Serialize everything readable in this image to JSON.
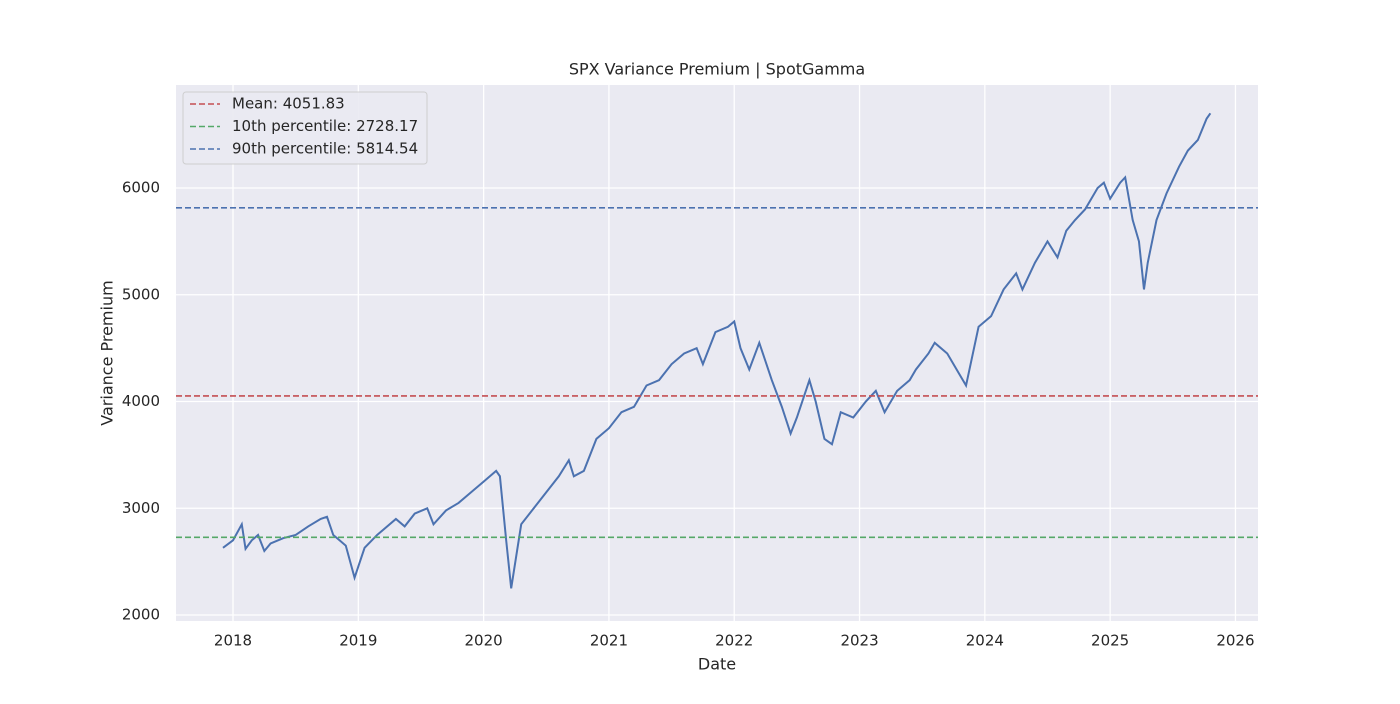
{
  "chart_data": {
    "type": "line",
    "title": "SPX Variance Premium | SpotGamma",
    "x_label": "Date",
    "y_label": "Variance Premium",
    "x": [
      2017.92,
      2018.0,
      2018.07,
      2018.1,
      2018.15,
      2018.2,
      2018.25,
      2018.3,
      2018.4,
      2018.5,
      2018.6,
      2018.7,
      2018.75,
      2018.8,
      2018.85,
      2018.9,
      2018.97,
      2019.05,
      2019.15,
      2019.3,
      2019.37,
      2019.45,
      2019.55,
      2019.6,
      2019.7,
      2019.8,
      2019.9,
      2020.0,
      2020.1,
      2020.13,
      2020.18,
      2020.22,
      2020.24,
      2020.3,
      2020.4,
      2020.5,
      2020.6,
      2020.68,
      2020.72,
      2020.8,
      2020.9,
      2021.0,
      2021.1,
      2021.2,
      2021.3,
      2021.4,
      2021.5,
      2021.6,
      2021.7,
      2021.75,
      2021.85,
      2021.95,
      2022.0,
      2022.05,
      2022.12,
      2022.2,
      2022.3,
      2022.38,
      2022.45,
      2022.5,
      2022.6,
      2022.65,
      2022.72,
      2022.78,
      2022.85,
      2022.95,
      2023.05,
      2023.13,
      2023.2,
      2023.3,
      2023.4,
      2023.45,
      2023.55,
      2023.6,
      2023.7,
      2023.8,
      2023.85,
      2023.95,
      2024.05,
      2024.15,
      2024.25,
      2024.3,
      2024.4,
      2024.5,
      2024.58,
      2024.65,
      2024.72,
      2024.8,
      2024.9,
      2024.95,
      2025.0,
      2025.08,
      2025.12,
      2025.18,
      2025.23,
      2025.27,
      2025.3,
      2025.37,
      2025.45,
      2025.55,
      2025.62,
      2025.7,
      2025.77,
      2025.8
    ],
    "series": [
      {
        "name": "SPX",
        "color": "#4c72b0",
        "values": [
          2630,
          2700,
          2850,
          2620,
          2700,
          2750,
          2600,
          2670,
          2720,
          2750,
          2830,
          2900,
          2920,
          2750,
          2700,
          2650,
          2350,
          2630,
          2750,
          2900,
          2830,
          2950,
          3000,
          2850,
          2980,
          3050,
          3150,
          3250,
          3350,
          3300,
          2700,
          2250,
          2400,
          2850,
          3000,
          3150,
          3300,
          3450,
          3300,
          3350,
          3650,
          3750,
          3900,
          3950,
          4150,
          4200,
          4350,
          4450,
          4500,
          4350,
          4650,
          4700,
          4750,
          4500,
          4300,
          4550,
          4200,
          3950,
          3700,
          3850,
          4200,
          4000,
          3650,
          3600,
          3900,
          3850,
          4000,
          4100,
          3900,
          4100,
          4200,
          4300,
          4450,
          4550,
          4450,
          4250,
          4150,
          4700,
          4800,
          5050,
          5200,
          5050,
          5300,
          5500,
          5350,
          5600,
          5700,
          5800,
          6000,
          6050,
          5900,
          6050,
          6100,
          5700,
          5500,
          5050,
          5300,
          5700,
          5950,
          6200,
          6350,
          6450,
          6650,
          6700
        ]
      }
    ],
    "hlines": [
      {
        "name": "Mean: 4051.83",
        "value": 4051.83,
        "color": "#c44e52"
      },
      {
        "name": "10th percentile: 2728.17",
        "value": 2728.17,
        "color": "#55a868"
      },
      {
        "name": "90th percentile: 5814.54",
        "value": 5814.54,
        "color": "#4c72b0"
      }
    ],
    "xlim": [
      2017.545,
      2026.18
    ],
    "xticks": [
      2018,
      2019,
      2020,
      2021,
      2022,
      2023,
      2024,
      2025,
      2026
    ],
    "ylim": [
      1944,
      6965
    ],
    "yticks": [
      2000,
      3000,
      4000,
      5000,
      6000
    ],
    "grid": true,
    "legend": "upper left"
  }
}
